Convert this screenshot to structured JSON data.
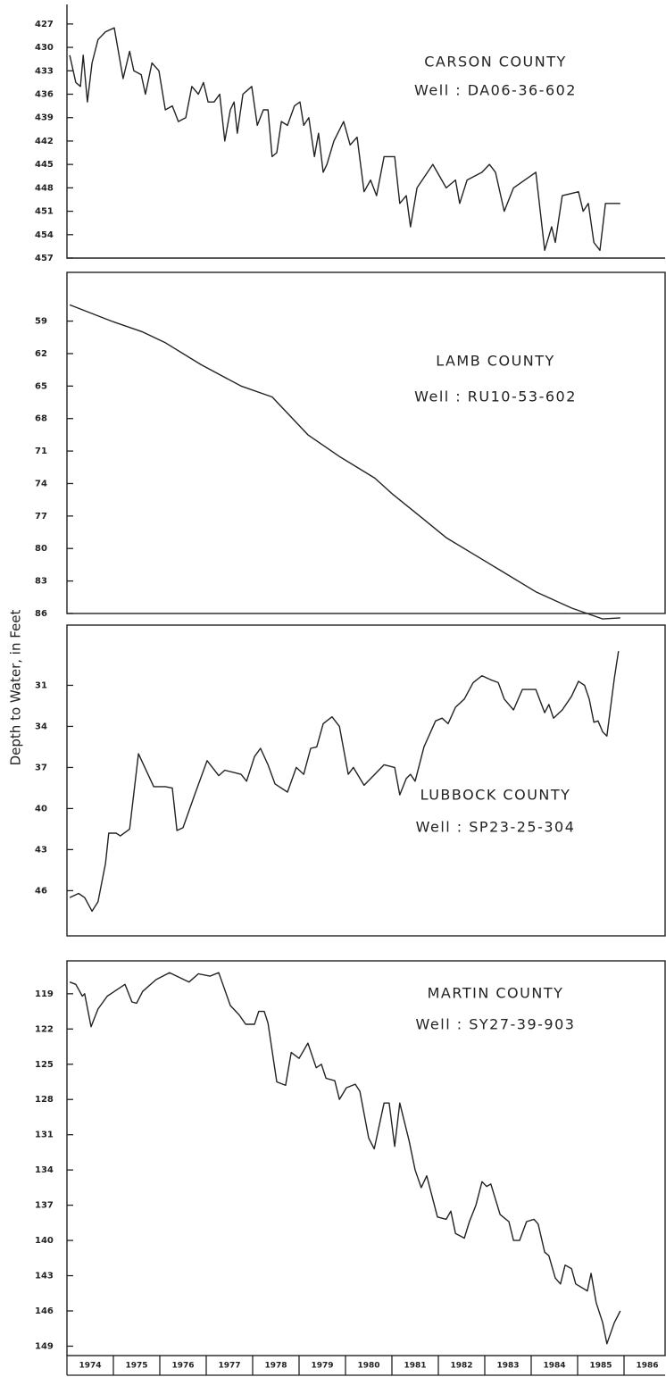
{
  "ylabel": "Depth to Water, in Feet",
  "chart_data": [
    {
      "type": "line",
      "title": "CARSON COUNTY",
      "subtitle": "Well : DA06-36-602",
      "color": "#222222",
      "xlim": [
        1974,
        1986.8
      ],
      "ylim": [
        457,
        424.5
      ],
      "yticks": [
        427,
        430,
        433,
        436,
        439,
        442,
        445,
        448,
        451,
        454,
        457
      ],
      "x": [
        1974.06,
        1974.19,
        1974.29,
        1974.35,
        1974.44,
        1974.54,
        1974.67,
        1974.83,
        1975.02,
        1975.21,
        1975.35,
        1975.44,
        1975.6,
        1975.69,
        1975.83,
        1975.98,
        1976.12,
        1976.27,
        1976.4,
        1976.56,
        1976.69,
        1976.83,
        1976.94,
        1977.04,
        1977.17,
        1977.29,
        1977.4,
        1977.52,
        1977.6,
        1977.67,
        1977.79,
        1977.98,
        1978.1,
        1978.23,
        1978.33,
        1978.42,
        1978.52,
        1978.62,
        1978.75,
        1978.9,
        1979.02,
        1979.1,
        1979.21,
        1979.33,
        1979.42,
        1979.52,
        1979.6,
        1979.75,
        1979.96,
        1980.1,
        1980.25,
        1980.4,
        1980.54,
        1980.67,
        1980.83,
        1981.06,
        1981.17,
        1981.31,
        1981.4,
        1981.54,
        1981.88,
        1982.17,
        1982.37,
        1982.46,
        1982.62,
        1982.94,
        1983.1,
        1983.23,
        1983.42,
        1983.62,
        1984.1,
        1984.29,
        1984.44,
        1984.52,
        1984.67,
        1985.02,
        1985.12,
        1985.23,
        1985.35,
        1985.48,
        1985.6,
        1985.73,
        1985.92
      ],
      "values": [
        431,
        434.5,
        435,
        431,
        437,
        432,
        429,
        428,
        427.5,
        434,
        430.5,
        433,
        433.5,
        436,
        432,
        433,
        438,
        437.5,
        439.5,
        439,
        435,
        436,
        434.5,
        437,
        437,
        436,
        442,
        438,
        437,
        441,
        436,
        435,
        440,
        438,
        438,
        444,
        443.5,
        439.5,
        440,
        437.5,
        437,
        440,
        439,
        444,
        441,
        446,
        445,
        442,
        439.5,
        442.5,
        441.5,
        448.5,
        447,
        449,
        444,
        444,
        450,
        449,
        453,
        448,
        445,
        448,
        447,
        450,
        447,
        446,
        445,
        446,
        451,
        448,
        446,
        456,
        453,
        455,
        449,
        448.5,
        451,
        450,
        455,
        456,
        450,
        450,
        450
      ]
    },
    {
      "type": "line",
      "title": "LAMB COUNTY",
      "subtitle": "Well : RU10-53-602",
      "color": "#222222",
      "xlim": [
        1974,
        1986.8
      ],
      "ylim": [
        86,
        54.5
      ],
      "yticks": [
        59,
        62,
        65,
        68,
        71,
        74,
        77,
        80,
        83,
        86
      ],
      "x": [
        1974.06,
        1974.96,
        1975.63,
        1976.12,
        1976.88,
        1977.75,
        1978.42,
        1979.19,
        1979.87,
        1980.63,
        1981.02,
        1981.6,
        1982.17,
        1982.75,
        1983.33,
        1984.1,
        1984.87,
        1985.54,
        1985.92
      ],
      "values": [
        57.5,
        59,
        60,
        61,
        63,
        65,
        66,
        69.5,
        71.5,
        73.5,
        75,
        77,
        79,
        80.5,
        82,
        84,
        85.5,
        86.5,
        86.4
      ]
    },
    {
      "type": "line",
      "title": "LUBBOCK COUNTY",
      "subtitle": "Well : SP23-25-304",
      "color": "#222222",
      "xlim": [
        1974,
        1986.8
      ],
      "ylim": [
        49.3,
        26.6
      ],
      "yticks": [
        31,
        34,
        37,
        40,
        43,
        46
      ],
      "x": [
        1974.06,
        1974.25,
        1974.38,
        1974.54,
        1974.67,
        1974.83,
        1974.9,
        1975.06,
        1975.15,
        1975.35,
        1975.54,
        1975.87,
        1976.12,
        1976.27,
        1976.37,
        1976.5,
        1976.75,
        1977.02,
        1977.27,
        1977.4,
        1977.75,
        1977.87,
        1978.04,
        1978.17,
        1978.33,
        1978.48,
        1978.75,
        1978.94,
        1979.1,
        1979.25,
        1979.38,
        1979.52,
        1979.71,
        1979.87,
        1980.06,
        1980.17,
        1980.4,
        1980.63,
        1980.83,
        1981.06,
        1981.17,
        1981.31,
        1981.4,
        1981.5,
        1981.69,
        1981.94,
        1982.08,
        1982.21,
        1982.37,
        1982.56,
        1982.75,
        1982.94,
        1983.13,
        1983.29,
        1983.42,
        1983.62,
        1983.81,
        1984.1,
        1984.29,
        1984.38,
        1984.48,
        1984.67,
        1984.87,
        1985.02,
        1985.15,
        1985.25,
        1985.35,
        1985.44,
        1985.54,
        1985.63,
        1985.79,
        1985.88
      ],
      "values": [
        46.5,
        46.2,
        46.5,
        47.5,
        46.8,
        44,
        41.8,
        41.8,
        42,
        41.5,
        36,
        38.4,
        38.4,
        38.5,
        41.6,
        41.4,
        39,
        36.5,
        37.6,
        37.2,
        37.5,
        38,
        36.2,
        35.6,
        36.8,
        38.2,
        38.8,
        37,
        37.5,
        35.6,
        35.5,
        33.8,
        33.3,
        34,
        37.5,
        37,
        38.3,
        37.5,
        36.8,
        37,
        39,
        37.8,
        37.5,
        38,
        35.5,
        33.6,
        33.4,
        33.8,
        32.6,
        32,
        30.8,
        30.3,
        30.6,
        30.8,
        32,
        32.8,
        31.3,
        31.3,
        33,
        32.4,
        33.4,
        32.8,
        31.8,
        30.7,
        31,
        32,
        33.7,
        33.6,
        34.4,
        34.7,
        30.5,
        28.5
      ]
    },
    {
      "type": "line",
      "title": "MARTIN COUNTY",
      "subtitle": "Well : SY27-39-903",
      "color": "#222222",
      "xlim": [
        1974,
        1986.8
      ],
      "ylim": [
        149.8,
        116.2
      ],
      "yticks": [
        119,
        122,
        125,
        128,
        131,
        134,
        137,
        140,
        143,
        146,
        149
      ],
      "xticks": [
        1974,
        1975,
        1976,
        1977,
        1978,
        1979,
        1980,
        1981,
        1982,
        1983,
        1984,
        1985,
        1986
      ],
      "x": [
        1974.06,
        1974.19,
        1974.33,
        1974.38,
        1974.52,
        1974.67,
        1974.87,
        1975.25,
        1975.4,
        1975.5,
        1975.63,
        1975.92,
        1976.21,
        1976.63,
        1976.83,
        1977.08,
        1977.27,
        1977.52,
        1977.71,
        1977.85,
        1978.04,
        1978.13,
        1978.25,
        1978.33,
        1978.52,
        1978.71,
        1978.83,
        1979.0,
        1979.19,
        1979.37,
        1979.48,
        1979.58,
        1979.77,
        1979.87,
        1980.02,
        1980.21,
        1980.31,
        1980.5,
        1980.62,
        1980.83,
        1980.94,
        1981.06,
        1981.17,
        1981.37,
        1981.5,
        1981.63,
        1981.75,
        1981.98,
        1982.17,
        1982.27,
        1982.37,
        1982.56,
        1982.67,
        1982.81,
        1982.94,
        1983.04,
        1983.13,
        1983.33,
        1983.52,
        1983.62,
        1983.75,
        1983.9,
        1984.06,
        1984.15,
        1984.29,
        1984.38,
        1984.52,
        1984.63,
        1984.73,
        1984.87,
        1984.96,
        1985.21,
        1985.29,
        1985.4,
        1985.54,
        1985.63,
        1985.79,
        1985.92
      ],
      "values": [
        118,
        118.2,
        119.2,
        119,
        121.8,
        120.3,
        119.2,
        118.2,
        119.7,
        119.8,
        118.8,
        117.8,
        117.2,
        118,
        117.3,
        117.5,
        117.2,
        120,
        120.8,
        121.6,
        121.6,
        120.5,
        120.5,
        121.5,
        126.5,
        126.8,
        124,
        124.5,
        123.2,
        125.3,
        125,
        126.2,
        126.4,
        128,
        127,
        126.7,
        127.3,
        131.3,
        132.2,
        128.3,
        128.3,
        132,
        128.3,
        131.5,
        134,
        135.5,
        134.5,
        138,
        138.2,
        137.5,
        139.4,
        139.8,
        138.4,
        137,
        135,
        135.4,
        135.2,
        137.8,
        138.4,
        140,
        140,
        138.4,
        138.2,
        138.6,
        141,
        141.3,
        143.2,
        143.7,
        142.1,
        142.4,
        143.7,
        144.3,
        142.8,
        145.3,
        147,
        148.8,
        147,
        146
      ]
    }
  ]
}
